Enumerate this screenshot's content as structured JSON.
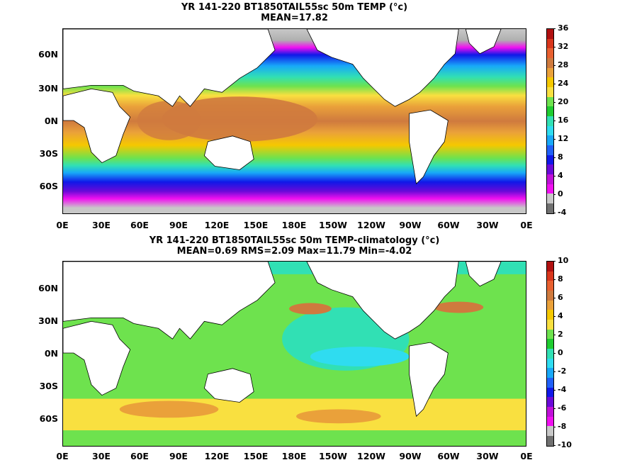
{
  "panel1": {
    "title_line1": "YR 141-220 BT1850TAIL55sc 50m TEMP (°c)",
    "title_line2": "MEAN=17.82",
    "colorbar": {
      "labels": [
        "36",
        "32",
        "28",
        "24",
        "20",
        "16",
        "12",
        "8",
        "4",
        "0",
        "-4"
      ],
      "colors": [
        "#b01010",
        "#d8361c",
        "#e86030",
        "#cf7a3e",
        "#eaa13a",
        "#f5c800",
        "#f9e040",
        "#6ee24e",
        "#1fcc30",
        "#31e0b4",
        "#2fdcf0",
        "#18a8f8",
        "#2060f8",
        "#1018e8",
        "#6a0ad8",
        "#c010d8",
        "#f010f0",
        "#c8c8c8",
        "#707070"
      ]
    }
  },
  "panel2": {
    "title_line1": "YR 141-220 BT1850TAIL55sc 50m TEMP-climatology (°c)",
    "title_line2": "MEAN=0.69   RMS=2.09   Max=11.79   Min=-4.02",
    "colorbar": {
      "labels": [
        "10",
        "8",
        "6",
        "4",
        "2",
        "0",
        "-2",
        "-4",
        "-6",
        "-8",
        "-10"
      ],
      "colors": [
        "#b01010",
        "#d8361c",
        "#e86030",
        "#cf7a3e",
        "#eaa13a",
        "#f5c800",
        "#f9e040",
        "#6ee24e",
        "#1fcc30",
        "#31e0b4",
        "#2fdcf0",
        "#18a8f8",
        "#2060f8",
        "#1018e8",
        "#6a0ad8",
        "#c010d8",
        "#f010f0",
        "#c8c8c8",
        "#707070"
      ]
    }
  },
  "axes": {
    "lat_labels": [
      "60N",
      "30N",
      "0N",
      "30S",
      "60S"
    ],
    "lon_labels": [
      "0E",
      "30E",
      "60E",
      "90E",
      "120E",
      "150E",
      "180E",
      "150W",
      "120W",
      "90W",
      "60W",
      "30W",
      "0E"
    ]
  }
}
